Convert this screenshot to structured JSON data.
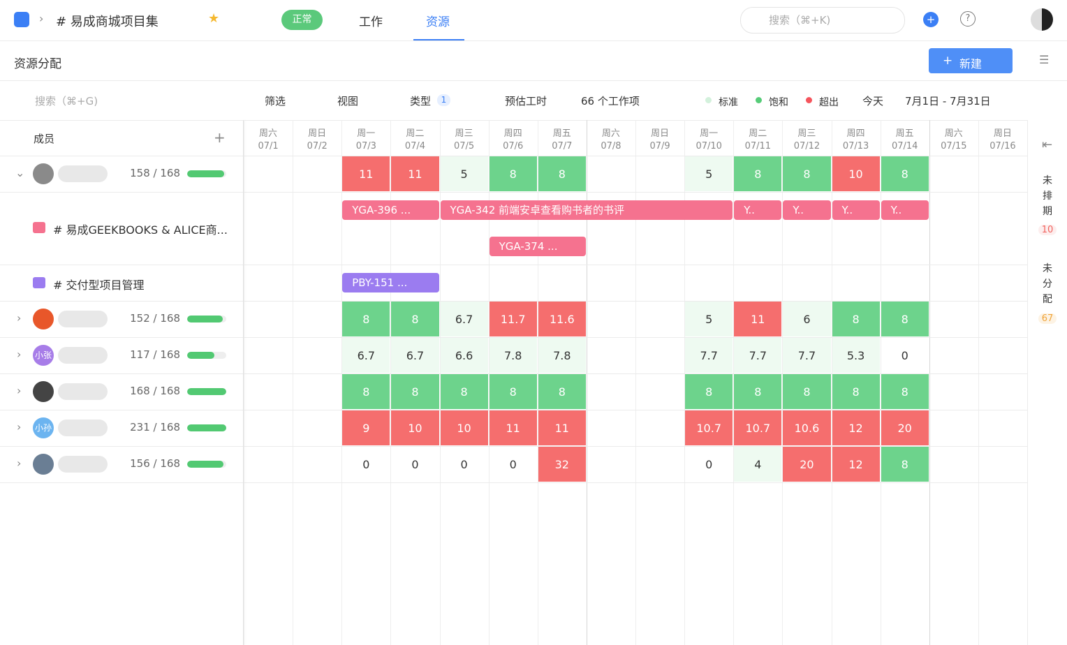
{
  "topbar": {
    "breadcrumb": "# 易成商城项目集",
    "status": "正常",
    "tabs": [
      "工作",
      "资源"
    ],
    "search": "搜索（⌘+K)"
  },
  "subheader": {
    "title": "资源分配",
    "new_button": "新建"
  },
  "toolbar": {
    "search": "搜索（⌘+G)",
    "filter": "筛选",
    "view": "视图",
    "type": "类型",
    "type_count": 1,
    "estimate": "预估工时",
    "item_count": "66 个工作项",
    "legend": [
      {
        "name": "标准",
        "color": "#d3f1dc",
        "cell": "#eefaf1"
      },
      {
        "name": "饱和",
        "color": "#56cc78",
        "cell": "#6dd38c"
      },
      {
        "name": "超出",
        "color": "#f5545c",
        "cell": "#f56e6e"
      }
    ],
    "today": "今天",
    "date_range": "7月1日 - 7月31日"
  },
  "members_header": "成员",
  "days": [
    {
      "weekday": "周六",
      "date": "07/1"
    },
    {
      "weekday": "周日",
      "date": "07/2"
    },
    {
      "weekday": "周一",
      "date": "07/3"
    },
    {
      "weekday": "周二",
      "date": "07/4"
    },
    {
      "weekday": "周三",
      "date": "07/5"
    },
    {
      "weekday": "周四",
      "date": "07/6"
    },
    {
      "weekday": "周五",
      "date": "07/7"
    },
    {
      "weekday": "周六",
      "date": "07/8"
    },
    {
      "weekday": "周日",
      "date": "07/9"
    },
    {
      "weekday": "周一",
      "date": "07/10"
    },
    {
      "weekday": "周二",
      "date": "07/11"
    },
    {
      "weekday": "周三",
      "date": "07/12"
    },
    {
      "weekday": "周四",
      "date": "07/13"
    },
    {
      "weekday": "周五",
      "date": "07/14"
    },
    {
      "weekday": "周六",
      "date": "07/15"
    },
    {
      "weekday": "周日",
      "date": "07/16"
    }
  ],
  "rows": [
    {
      "kind": "member",
      "avatar_color": "#8a8a8a",
      "used": 158,
      "capacity": 168,
      "hours": "158 / 168",
      "values": [
        null,
        null,
        11,
        11,
        5,
        8,
        8,
        null,
        null,
        5,
        8,
        8,
        10,
        8,
        null,
        null
      ],
      "levels": [
        null,
        null,
        2,
        2,
        0,
        1,
        1,
        null,
        null,
        0,
        1,
        1,
        2,
        1,
        null,
        null
      ]
    },
    {
      "kind": "project",
      "name": "# 易成GEEKBOOKS & ALICE商...",
      "color": "#f5728f",
      "lanes": [
        [
          {
            "label": "YGA-396 ...",
            "start": "07/3",
            "end": "07/4"
          },
          {
            "label": "YGA-342  前端安卓查看购书者的书评",
            "start": "07/5",
            "end": "07/10"
          },
          {
            "label": "Y..",
            "start": "07/11",
            "end": "07/11"
          },
          {
            "label": "Y..",
            "start": "07/12",
            "end": "07/12"
          },
          {
            "label": "Y..",
            "start": "07/13",
            "end": "07/13"
          },
          {
            "label": "Y..",
            "start": "07/14",
            "end": "07/14"
          }
        ],
        [
          {
            "label": "YGA-374 ...",
            "start": "07/6",
            "end": "07/7"
          }
        ]
      ]
    },
    {
      "kind": "project",
      "name": "# 交付型项目管理",
      "color": "#9b7cf0",
      "lanes": [
        [
          {
            "label": "PBY-151 ...",
            "start": "07/3",
            "end": "07/4"
          }
        ]
      ]
    },
    {
      "kind": "member",
      "avatar_color": "#e8572a",
      "used": 152,
      "capacity": 168,
      "hours": "152 / 168",
      "values": [
        null,
        null,
        8,
        8,
        6.7,
        11.7,
        11.6,
        null,
        null,
        5,
        11,
        6,
        8,
        8,
        null,
        null
      ],
      "levels": [
        null,
        null,
        1,
        1,
        0,
        2,
        2,
        null,
        null,
        0,
        2,
        0,
        1,
        1,
        null,
        null
      ]
    },
    {
      "kind": "member",
      "avatar": "小张",
      "avatar_color": "#a77de8",
      "used": 117,
      "capacity": 168,
      "hours": "117 / 168",
      "values": [
        null,
        null,
        6.7,
        6.7,
        6.6,
        7.8,
        7.8,
        null,
        null,
        7.7,
        7.7,
        7.7,
        5.3,
        0,
        null,
        null
      ],
      "levels": [
        null,
        null,
        0,
        0,
        0,
        0,
        0,
        null,
        null,
        0,
        0,
        0,
        0,
        null,
        null,
        null
      ]
    },
    {
      "kind": "member",
      "avatar_color": "#444444",
      "used": 168,
      "capacity": 168,
      "hours": "168 / 168",
      "values": [
        null,
        null,
        8,
        8,
        8,
        8,
        8,
        null,
        null,
        8,
        8,
        8,
        8,
        8,
        null,
        null
      ],
      "levels": [
        null,
        null,
        1,
        1,
        1,
        1,
        1,
        null,
        null,
        1,
        1,
        1,
        1,
        1,
        null,
        null
      ]
    },
    {
      "kind": "member",
      "avatar": "小孙",
      "avatar_color": "#6cb4f0",
      "used": 231,
      "capacity": 168,
      "hours": "231 / 168",
      "values": [
        null,
        null,
        9,
        10,
        10,
        11,
        11,
        null,
        null,
        10.7,
        10.7,
        10.6,
        12,
        20,
        null,
        null
      ],
      "levels": [
        null,
        null,
        2,
        2,
        2,
        2,
        2,
        null,
        null,
        2,
        2,
        2,
        2,
        2,
        null,
        null
      ]
    },
    {
      "kind": "member",
      "avatar_color": "#6a7e94",
      "used": 156,
      "capacity": 168,
      "hours": "156 / 168",
      "values": [
        null,
        null,
        0,
        0,
        0,
        0,
        32,
        null,
        null,
        0,
        4,
        20,
        12,
        8,
        null,
        null
      ],
      "levels": [
        null,
        null,
        null,
        null,
        null,
        null,
        2,
        null,
        null,
        null,
        0,
        2,
        2,
        1,
        null,
        null
      ]
    }
  ],
  "unscheduled": {
    "label": "未排期",
    "count": 10
  },
  "unassigned": {
    "label": "未分配",
    "count": 67
  }
}
